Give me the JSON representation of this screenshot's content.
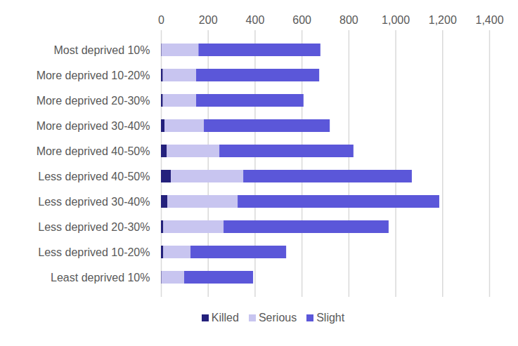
{
  "chart_data": {
    "type": "bar",
    "orientation": "horizontal",
    "stacked": true,
    "grid": true,
    "legend": "bottom",
    "categories": [
      "Most deprived 10%",
      "More deprived 10-20%",
      "More deprived 20-30%",
      "More deprived 30-40%",
      "More deprived 40-50%",
      "Less deprived 40-50%",
      "Less deprived 30-40%",
      "Less deprived 20-30%",
      "Less deprived 10-20%",
      "Least deprived 10%"
    ],
    "series": [
      {
        "name": "Killed",
        "color": "#24217c",
        "values": [
          2,
          8,
          8,
          15,
          25,
          42,
          27,
          10,
          10,
          2
        ]
      },
      {
        "name": "Serious",
        "color": "#c8c5f0",
        "values": [
          158,
          142,
          142,
          168,
          224,
          309,
          300,
          257,
          116,
          97
        ]
      },
      {
        "name": "Slight",
        "color": "#5b57d9",
        "values": [
          520,
          525,
          458,
          537,
          572,
          719,
          860,
          704,
          408,
          294
        ]
      }
    ],
    "xlim": [
      0,
      1400
    ],
    "xticks": [
      0,
      200,
      400,
      600,
      800,
      1000,
      1200,
      1400
    ]
  }
}
